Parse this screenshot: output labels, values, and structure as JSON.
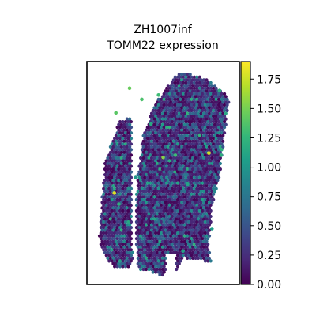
{
  "chart_data": {
    "type": "scatter",
    "title_lines": [
      "ZH1007inf",
      "TOMM22 expression"
    ],
    "xlabel": "",
    "ylabel": "",
    "grid": false,
    "x_ticks": [],
    "y_ticks": [],
    "colormap": "viridis",
    "colormap_stops": [
      "#440154",
      "#482878",
      "#3e4989",
      "#31688e",
      "#26828e",
      "#1f9e89",
      "#35b779",
      "#6ece58",
      "#b5de2b",
      "#fde725"
    ],
    "color_range": [
      0.0,
      1.9
    ],
    "colorbar_ticks": [
      {
        "value": 0.0,
        "label": "0.00"
      },
      {
        "value": 0.25,
        "label": "0.25"
      },
      {
        "value": 0.5,
        "label": "0.50"
      },
      {
        "value": 0.75,
        "label": "0.75"
      },
      {
        "value": 1.0,
        "label": "1.00"
      },
      {
        "value": 1.25,
        "label": "1.25"
      },
      {
        "value": 1.5,
        "label": "1.50"
      },
      {
        "value": 1.75,
        "label": "1.75"
      }
    ],
    "highlights": [
      {
        "x": 0.18,
        "y": 0.59,
        "value": 1.8
      },
      {
        "x": 0.8,
        "y": 0.41,
        "value": 1.75
      },
      {
        "x": 0.5,
        "y": 0.43,
        "value": 1.55
      },
      {
        "x": 0.28,
        "y": 0.12,
        "value": 1.45
      },
      {
        "x": 0.19,
        "y": 0.23,
        "value": 1.4
      },
      {
        "x": 0.36,
        "y": 0.17,
        "value": 1.35
      },
      {
        "x": 0.58,
        "y": 0.42,
        "value": 1.3
      },
      {
        "x": 0.21,
        "y": 0.64,
        "value": 1.2
      },
      {
        "x": 0.74,
        "y": 0.33,
        "value": 1.25
      },
      {
        "x": 0.42,
        "y": 0.28,
        "value": 1.15
      },
      {
        "x": 0.63,
        "y": 0.85,
        "value": 1.1
      },
      {
        "x": 0.66,
        "y": 0.55,
        "value": 1.1
      },
      {
        "x": 0.82,
        "y": 0.75,
        "value": 1.05
      },
      {
        "x": 0.88,
        "y": 0.42,
        "value": 1.2
      },
      {
        "x": 0.32,
        "y": 0.52,
        "value": 1.0
      },
      {
        "x": 0.47,
        "y": 0.15,
        "value": 1.3
      },
      {
        "x": 0.87,
        "y": 0.13,
        "value": 1.2
      }
    ]
  }
}
